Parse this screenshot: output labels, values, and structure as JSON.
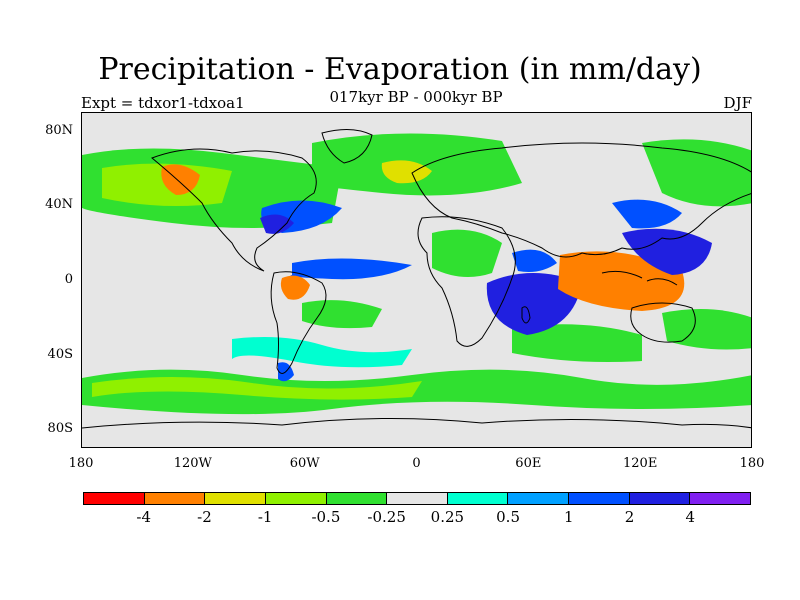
{
  "title": "Precipitation - Evaporation (in mm/day)",
  "subtitle": "017kyr BP - 000kyr BP",
  "experiment": "Expt = tdxor1-tdxoa1",
  "season": "DJF",
  "map": {
    "background_color": "#e6e6e6",
    "lat_labels": [
      "80N",
      "40N",
      "0",
      "40S",
      "80S"
    ],
    "lat_values": [
      80,
      40,
      0,
      -40,
      -80
    ],
    "lon_labels": [
      "180",
      "120W",
      "60W",
      "0",
      "60E",
      "120E",
      "180"
    ],
    "lon_values": [
      -180,
      -120,
      -60,
      0,
      60,
      120,
      180
    ],
    "lon_range": [
      -180,
      180
    ],
    "lat_range": [
      -90,
      90
    ]
  },
  "colorbar": {
    "colors": [
      "#ff0000",
      "#ff8000",
      "#e0e000",
      "#90f000",
      "#30e030",
      "#e6e6e6",
      "#00ffd0",
      "#00a0ff",
      "#0050ff",
      "#2020e0",
      "#8020f0"
    ],
    "labels": [
      "-4",
      "-2",
      "-1",
      "-0.5",
      "-0.25",
      "0.25",
      "0.5",
      "1",
      "2",
      "4"
    ]
  }
}
